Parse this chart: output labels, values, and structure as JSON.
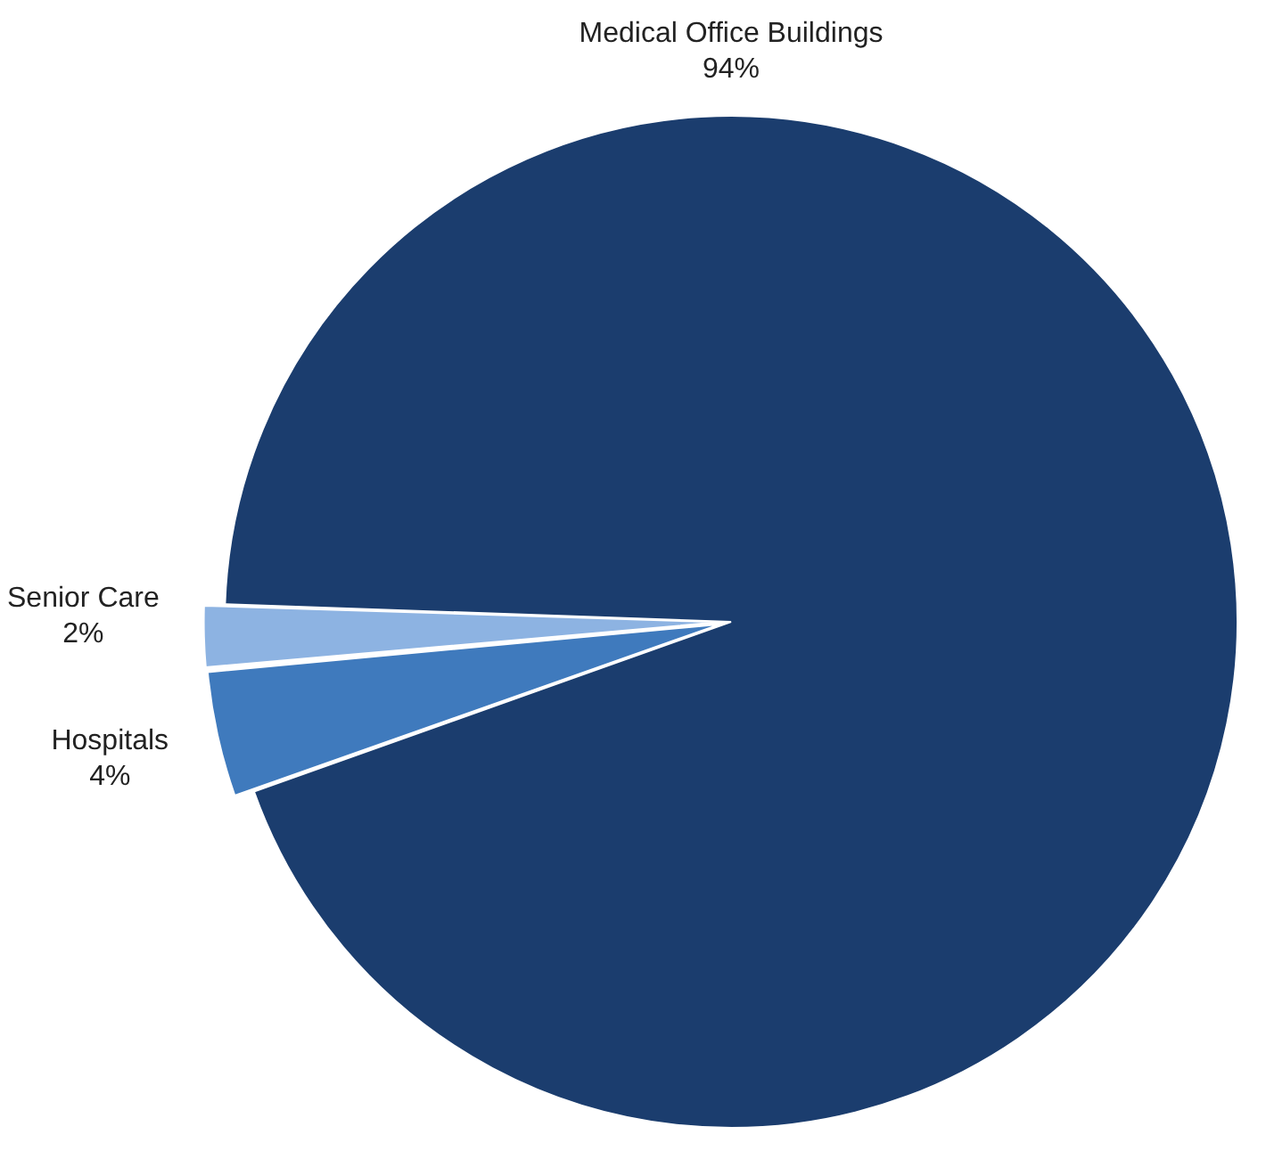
{
  "chart_data": {
    "type": "pie",
    "categories": [
      "Medical Office Buildings",
      "Hospitals",
      "Senior Care"
    ],
    "values": [
      94,
      4,
      2
    ],
    "colors": [
      "#1b3d6e",
      "#3f7abd",
      "#8db3e2"
    ],
    "value_labels": [
      "94%",
      "4%",
      "2%"
    ],
    "legend": false
  }
}
